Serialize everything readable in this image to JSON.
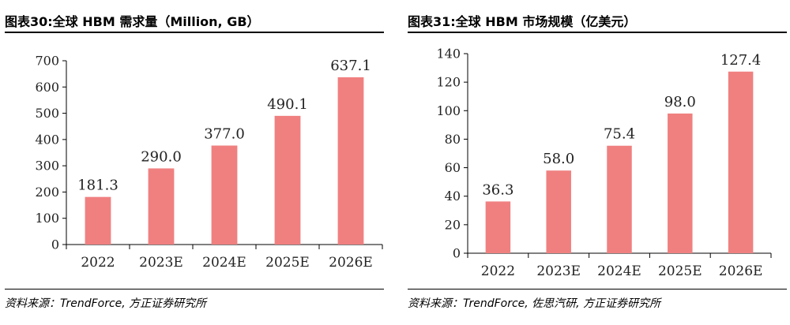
{
  "colors": {
    "bar": "#F08080",
    "axis": "#000000",
    "text": "#222222"
  },
  "chart_data": [
    {
      "type": "bar",
      "title": "图表30:全球 HBM 需求量（Million, GB）",
      "source": "资料来源：TrendForce, 方正证券研究所",
      "categories": [
        "2022",
        "2023E",
        "2024E",
        "2025E",
        "2026E"
      ],
      "values": [
        181.3,
        290.0,
        377.0,
        490.1,
        637.1
      ],
      "value_labels": [
        "181.3",
        "290.0",
        "377.0",
        "490.1",
        "637.1"
      ],
      "yticks": [
        "0",
        "100",
        "200",
        "300",
        "400",
        "500",
        "600",
        "700"
      ],
      "ylim": [
        0,
        700
      ],
      "grid": false,
      "legend": "none"
    },
    {
      "type": "bar",
      "title": "图表31:全球 HBM 市场规模（亿美元）",
      "source": "资料来源：TrendForce, 佐思汽研, 方正证券研究所",
      "categories": [
        "2022",
        "2023E",
        "2024E",
        "2025E",
        "2026E"
      ],
      "values": [
        36.3,
        58.0,
        75.4,
        98.0,
        127.4
      ],
      "value_labels": [
        "36.3",
        "58.0",
        "75.4",
        "98.0",
        "127.4"
      ],
      "yticks": [
        "0",
        "20",
        "40",
        "60",
        "80",
        "100",
        "120",
        "140"
      ],
      "ylim": [
        0,
        140
      ],
      "grid": false,
      "legend": "none"
    }
  ]
}
